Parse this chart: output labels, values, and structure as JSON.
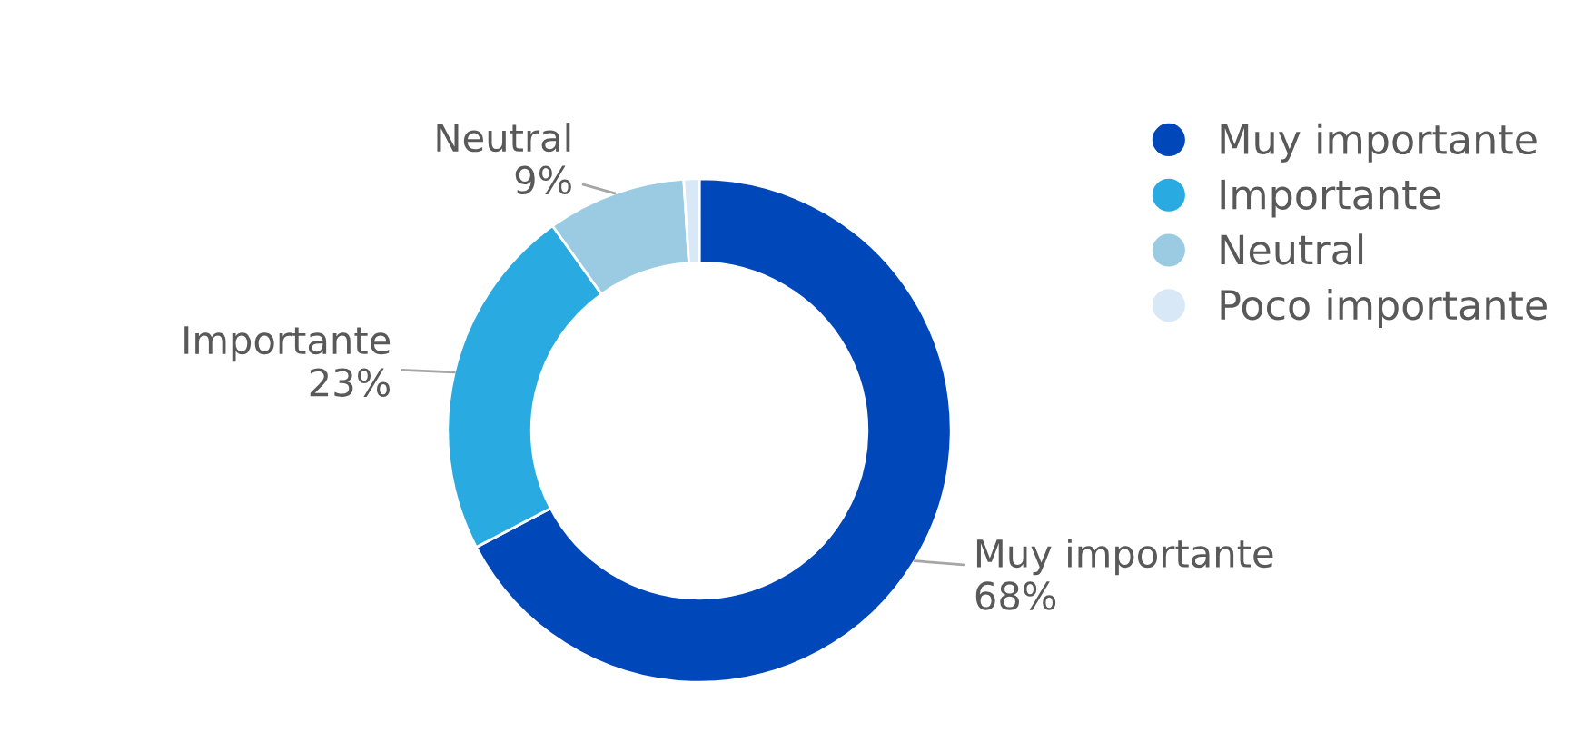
{
  "chart_data": {
    "type": "donut",
    "categories": [
      "Muy importante",
      "Importante",
      "Neutral",
      "Poco importante"
    ],
    "values": [
      68,
      23,
      9,
      1
    ],
    "value_labels": [
      "68%",
      "23%",
      "9%",
      null
    ],
    "colors": [
      "#0047ba",
      "#29abe2",
      "#9bcae3",
      "#d9e8f6"
    ],
    "legend": "right"
  }
}
